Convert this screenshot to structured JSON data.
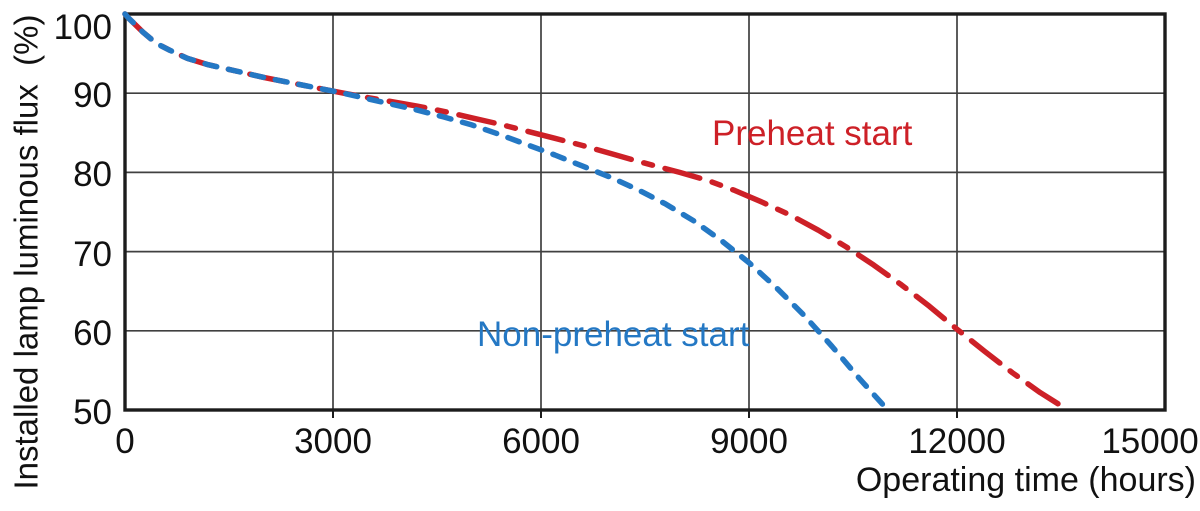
{
  "chart_data": {
    "type": "line",
    "title": "",
    "xlabel": "Operating time (hours)",
    "ylabel": "Installed lamp luminous flux  (%)",
    "xlim": [
      0,
      15000
    ],
    "ylim": [
      50,
      100
    ],
    "xticks": [
      0,
      3000,
      6000,
      9000,
      12000,
      15000
    ],
    "yticks": [
      100,
      90,
      80,
      70,
      60,
      50
    ],
    "grid": true,
    "legend_position": "inline-annotations",
    "colors": {
      "axis": "#1c1c1c",
      "grid": "#404040",
      "text": "#111111",
      "preheat_red": "#cd2027",
      "nonpreheat_blue": "#2478c4"
    },
    "series": [
      {
        "name": "Preheat start",
        "color": "#cd2027",
        "dash": "dashdot",
        "points": [
          [
            0,
            100
          ],
          [
            60,
            99.4
          ],
          [
            120,
            98.9
          ],
          [
            260,
            97.7
          ],
          [
            450,
            96.3
          ],
          [
            650,
            95.4
          ],
          [
            900,
            94.4
          ],
          [
            1200,
            93.6
          ],
          [
            1600,
            92.8
          ],
          [
            2000,
            92
          ],
          [
            2400,
            91.3
          ],
          [
            2800,
            90.6
          ],
          [
            3100,
            90.1
          ],
          [
            3400,
            89.6
          ],
          [
            3800,
            89
          ],
          [
            4200,
            88.4
          ],
          [
            4600,
            87.7
          ],
          [
            5000,
            86.9
          ],
          [
            5400,
            86.1
          ],
          [
            5800,
            85.2
          ],
          [
            6200,
            84.3
          ],
          [
            6600,
            83.4
          ],
          [
            7000,
            82.4
          ],
          [
            7400,
            81.4
          ],
          [
            7700,
            80.7
          ],
          [
            8000,
            80
          ],
          [
            8400,
            79
          ],
          [
            8800,
            77.7
          ],
          [
            9200,
            76.2
          ],
          [
            9600,
            74.6
          ],
          [
            10000,
            72.7
          ],
          [
            10400,
            70.6
          ],
          [
            10800,
            68.3
          ],
          [
            11200,
            65.8
          ],
          [
            11600,
            63.1
          ],
          [
            12000,
            60.2
          ],
          [
            12400,
            57.4
          ],
          [
            12800,
            54.7
          ],
          [
            13200,
            52.2
          ],
          [
            13600,
            50
          ]
        ]
      },
      {
        "name": "Non-preheat start",
        "color": "#2478c4",
        "dash": "dashed",
        "points": [
          [
            0,
            100
          ],
          [
            60,
            99.4
          ],
          [
            120,
            98.9
          ],
          [
            260,
            97.7
          ],
          [
            450,
            96.3
          ],
          [
            650,
            95.4
          ],
          [
            900,
            94.4
          ],
          [
            1200,
            93.6
          ],
          [
            1600,
            92.8
          ],
          [
            2000,
            92
          ],
          [
            2400,
            91.3
          ],
          [
            2800,
            90.6
          ],
          [
            3100,
            90.1
          ],
          [
            3400,
            89.5
          ],
          [
            3800,
            88.7
          ],
          [
            4200,
            87.9
          ],
          [
            4600,
            87
          ],
          [
            5000,
            86
          ],
          [
            5400,
            84.8
          ],
          [
            5800,
            83.5
          ],
          [
            6200,
            82.2
          ],
          [
            6600,
            80.8
          ],
          [
            7000,
            79.4
          ],
          [
            7400,
            77.8
          ],
          [
            7800,
            76
          ],
          [
            8200,
            73.9
          ],
          [
            8600,
            71.4
          ],
          [
            9000,
            68.6
          ],
          [
            9400,
            65.4
          ],
          [
            9800,
            61.9
          ],
          [
            10200,
            58
          ],
          [
            10600,
            53.9
          ],
          [
            11000,
            50
          ]
        ]
      }
    ]
  }
}
